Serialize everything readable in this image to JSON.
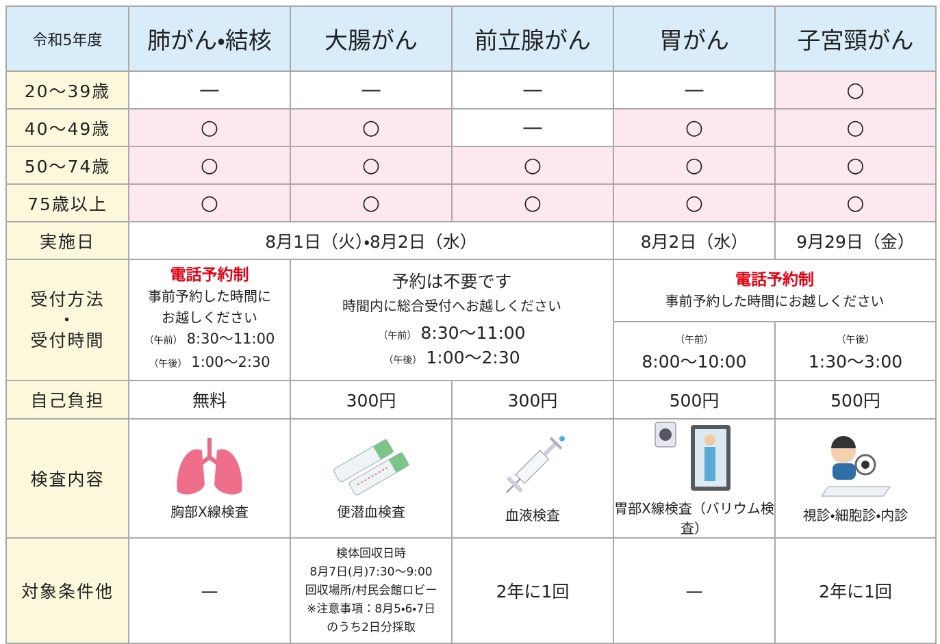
{
  "header": [
    "令和5年度",
    "肺がん・結核",
    "大腸がん",
    "前立腺がん",
    "胃がん",
    "子宮頸がん"
  ],
  "age_rows": [
    {
      "label": "20〜39歳",
      "cells": [
        "—",
        "—",
        "—",
        "—",
        "○"
      ],
      "shaded": [
        false,
        false,
        false,
        false,
        true
      ]
    },
    {
      "label": "40〜49歳",
      "cells": [
        "○",
        "○",
        "—",
        "○",
        "○"
      ],
      "shaded": [
        true,
        true,
        false,
        true,
        true
      ]
    },
    {
      "label": "50〜74歳",
      "cells": [
        "○",
        "○",
        "○",
        "○",
        "○"
      ],
      "shaded": [
        true,
        true,
        true,
        true,
        true
      ]
    },
    {
      "label": "75歳以上",
      "cells": [
        "○",
        "○",
        "○",
        "○",
        "○"
      ],
      "shaded": [
        true,
        true,
        true,
        true,
        true
      ]
    }
  ],
  "date_row": {
    "label": "実施日",
    "cells": [
      "8月1日（火）・8月2日（水）",
      "8月2日（水）",
      "9月29日（金）"
    ]
  },
  "reception_row": {
    "label": [
      "受付方法",
      "・",
      "受付時間"
    ],
    "lung": {
      "title": "電話予約制",
      "lines": [
        "事前予約した時間に",
        "お越しください"
      ],
      "times": [
        {
          "period": "（午前）",
          "time": "8:30〜11:00"
        },
        {
          "period": "（午後）",
          "time": "1:00〜2:30"
        }
      ]
    },
    "colon_prostate": {
      "title": "予約は不要です",
      "lines": [
        "時間内に総合受付へお越しください"
      ],
      "times": [
        {
          "period": "（午前）",
          "time": "8:30〜11:00"
        },
        {
          "period": "（午後）",
          "time": "1:00〜2:30"
        }
      ]
    },
    "stomach_cervical": {
      "title": "電話予約制",
      "lines": [
        "事前予約した時間にお越しください"
      ],
      "times": [
        {
          "period": "（午前）",
          "time": "8:00〜10:00"
        },
        {
          "period": "（午後）",
          "time": "1:30〜3:00"
        }
      ]
    }
  },
  "cost_row": {
    "label": "自己負担",
    "cells": [
      "無料",
      "300円",
      "300円",
      "500円",
      "500円"
    ]
  },
  "exam_row": {
    "label": "検査内容",
    "cells": [
      "胸部X線検査",
      "便潜血検査",
      "血液検査",
      "胃部X線検査（バリウム検査）",
      "視診・細胞診・内診"
    ]
  },
  "conditions_row": {
    "label": "対象条件他",
    "cells": [
      "—",
      [
        "検体回収日時",
        "8月7日(月)7:30〜9:00",
        "回収場所/村民会館ロビー",
        "※注意事項：8月5・6・7日",
        "のうち2日分採取"
      ],
      "2年に1回",
      "—",
      "2年に1回"
    ]
  }
}
